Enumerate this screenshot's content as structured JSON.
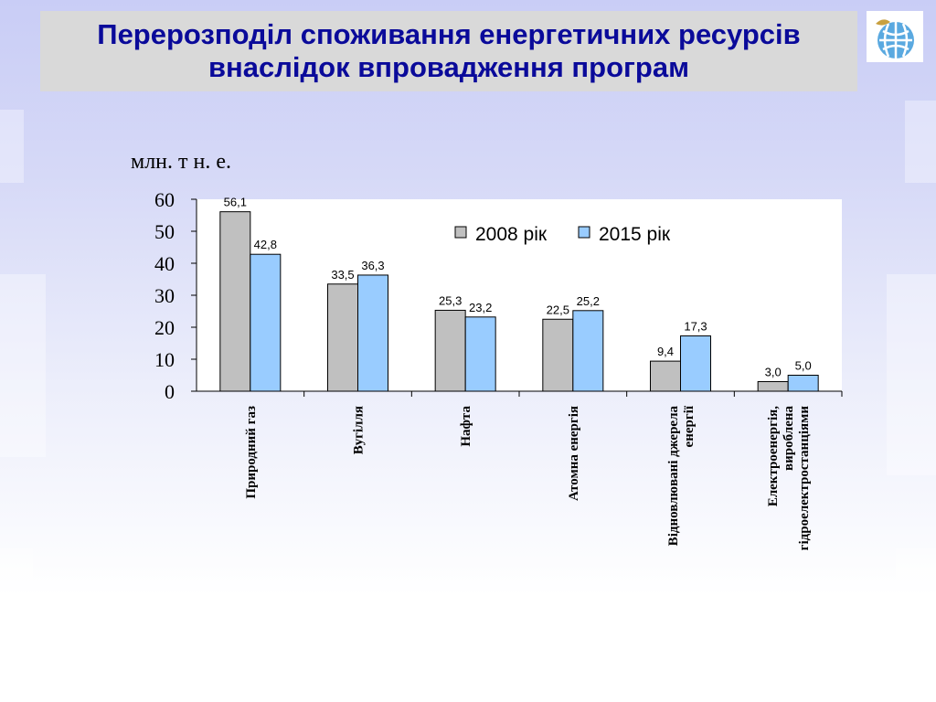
{
  "slide": {
    "title_line1": "Перерозподіл споживання енергетичних ресурсів",
    "title_line2": "внаслідок впровадження програм",
    "unit_label": "млн. т н. е.",
    "logo_icon": "globe-leaf-icon"
  },
  "colors": {
    "title": "#0a0a9a",
    "series_2008": "#c0c0c0",
    "series_2015": "#99ccff"
  },
  "chart_data": {
    "type": "bar",
    "categories": [
      [
        "Природний газ"
      ],
      [
        "Вугілля"
      ],
      [
        "Нафта"
      ],
      [
        "Атомна енергія"
      ],
      [
        "Відновлювані джерела",
        "енергії"
      ],
      [
        "Електроенергія,",
        "вироблена",
        "гідроелектростанціями"
      ]
    ],
    "series": [
      {
        "name": "2008 рік",
        "values": [
          56.1,
          33.5,
          25.3,
          22.5,
          9.4,
          3.0
        ],
        "labels": [
          "56,1",
          "33,5",
          "25,3",
          "22,5",
          "9,4",
          "3,0"
        ]
      },
      {
        "name": "2015 рік",
        "values": [
          42.8,
          36.3,
          23.2,
          25.2,
          17.3,
          5.0
        ],
        "labels": [
          "42,8",
          "36,3",
          "23,2",
          "25,2",
          "17,3",
          "5,0"
        ]
      }
    ],
    "ylabel": "млн. т н. е.",
    "ylim": [
      0,
      60
    ],
    "yticks": [
      0,
      10,
      20,
      30,
      40,
      50,
      60
    ],
    "legend_position": "top-right",
    "grid": false
  }
}
